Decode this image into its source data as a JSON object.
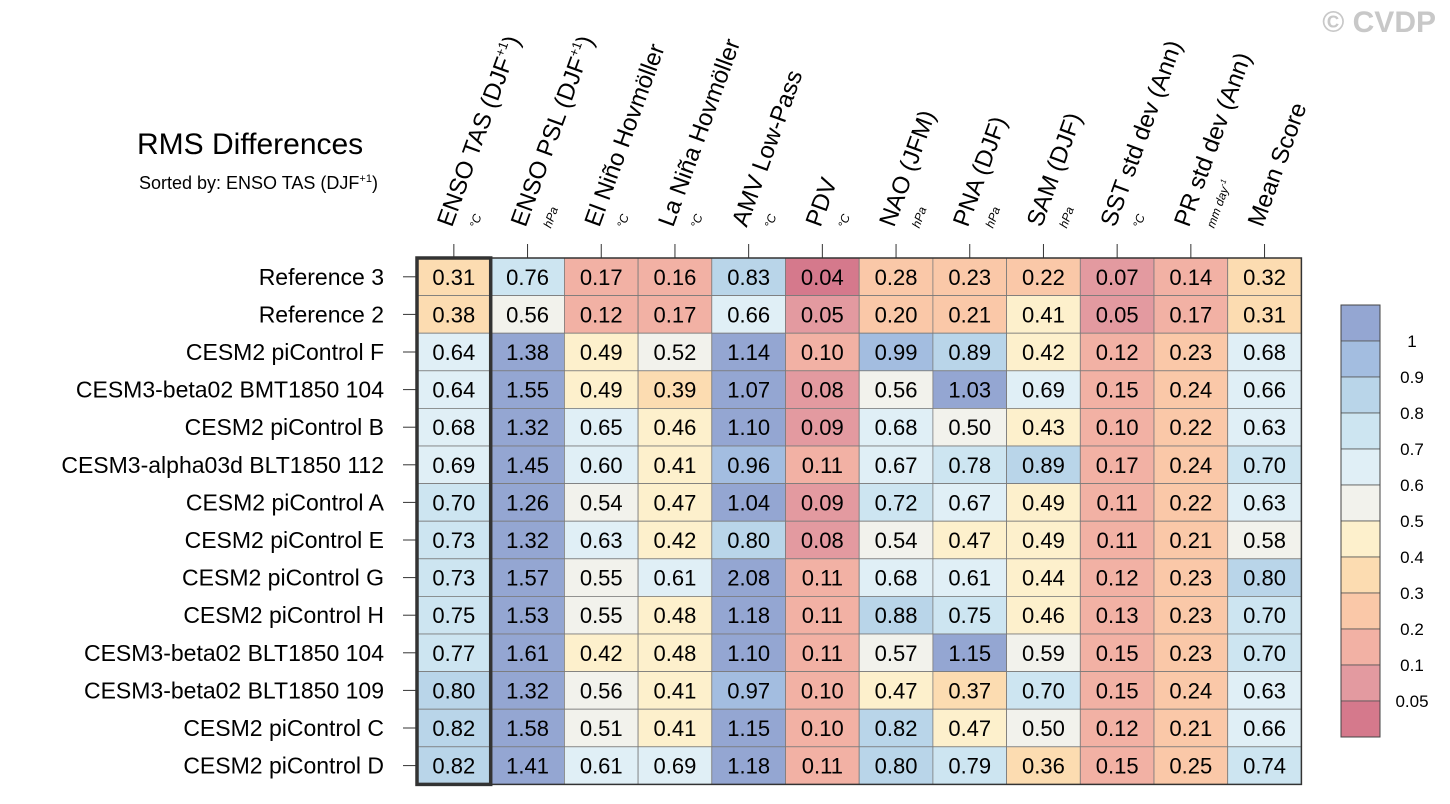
{
  "watermark": "© CVDP",
  "title": "RMS Differences",
  "subtitle": "Sorted by: ENSO TAS (DJF+1)",
  "chart_data": {
    "type": "heatmap",
    "columns": [
      {
        "main": "ENSO TAS (DJF",
        "sup": "+1",
        "close": ")",
        "unit": "°C"
      },
      {
        "main": "ENSO PSL (DJF",
        "sup": "+1",
        "close": ")",
        "unit": "hPa"
      },
      {
        "main": "El Niño Hovmöller",
        "unit": "°C"
      },
      {
        "main": "La Niña Hovmöller",
        "unit": "°C"
      },
      {
        "main": "AMV Low-Pass",
        "unit": "°C"
      },
      {
        "main": "PDV",
        "unit": "°C"
      },
      {
        "main": "NAO (JFM)",
        "unit": "hPa"
      },
      {
        "main": "PNA (DJF)",
        "unit": "hPa"
      },
      {
        "main": "SAM (DJF)",
        "unit": "hPa"
      },
      {
        "main": "SST std dev (Ann)",
        "unit": "°C"
      },
      {
        "main": "PR std dev (Ann)",
        "unit": "mm day",
        "unit_sup": "-1"
      },
      {
        "main": "Mean Score",
        "unit": ""
      }
    ],
    "rows": [
      "Reference 3",
      "Reference 2",
      "CESM2 piControl F",
      "CESM3-beta02 BMT1850 104",
      "CESM2 piControl B",
      "CESM3-alpha03d BLT1850 112",
      "CESM2 piControl A",
      "CESM2 piControl E",
      "CESM2 piControl G",
      "CESM2 piControl H",
      "CESM3-beta02 BLT1850 104",
      "CESM3-beta02 BLT1850 109",
      "CESM2 piControl C",
      "CESM2 piControl D"
    ],
    "values": [
      [
        0.31,
        0.76,
        0.17,
        0.16,
        0.83,
        0.04,
        0.28,
        0.23,
        0.22,
        0.07,
        0.14,
        0.32
      ],
      [
        0.38,
        0.56,
        0.12,
        0.17,
        0.66,
        0.05,
        0.2,
        0.21,
        0.41,
        0.05,
        0.17,
        0.31
      ],
      [
        0.64,
        1.38,
        0.49,
        0.52,
        1.14,
        0.1,
        0.99,
        0.89,
        0.42,
        0.12,
        0.23,
        0.68
      ],
      [
        0.64,
        1.55,
        0.49,
        0.39,
        1.07,
        0.08,
        0.56,
        1.03,
        0.69,
        0.15,
        0.24,
        0.66
      ],
      [
        0.68,
        1.32,
        0.65,
        0.46,
        1.1,
        0.09,
        0.68,
        0.5,
        0.43,
        0.1,
        0.22,
        0.63
      ],
      [
        0.69,
        1.45,
        0.6,
        0.41,
        0.96,
        0.11,
        0.67,
        0.78,
        0.89,
        0.17,
        0.24,
        0.7
      ],
      [
        0.7,
        1.26,
        0.54,
        0.47,
        1.04,
        0.09,
        0.72,
        0.67,
        0.49,
        0.11,
        0.22,
        0.63
      ],
      [
        0.73,
        1.32,
        0.63,
        0.42,
        0.8,
        0.08,
        0.54,
        0.47,
        0.49,
        0.11,
        0.21,
        0.58
      ],
      [
        0.73,
        1.57,
        0.55,
        0.61,
        2.08,
        0.11,
        0.68,
        0.61,
        0.44,
        0.12,
        0.23,
        0.8
      ],
      [
        0.75,
        1.53,
        0.55,
        0.48,
        1.18,
        0.11,
        0.88,
        0.75,
        0.46,
        0.13,
        0.23,
        0.7
      ],
      [
        0.77,
        1.61,
        0.42,
        0.48,
        1.1,
        0.11,
        0.57,
        1.15,
        0.59,
        0.15,
        0.23,
        0.7
      ],
      [
        0.8,
        1.32,
        0.56,
        0.41,
        0.97,
        0.1,
        0.47,
        0.37,
        0.7,
        0.15,
        0.24,
        0.63
      ],
      [
        0.82,
        1.58,
        0.51,
        0.41,
        1.15,
        0.1,
        0.82,
        0.47,
        0.5,
        0.12,
        0.21,
        0.66
      ],
      [
        0.82,
        1.41,
        0.61,
        0.69,
        1.18,
        0.11,
        0.8,
        0.79,
        0.36,
        0.15,
        0.25,
        0.74
      ]
    ],
    "sorted_column_index": 0,
    "colorbar": {
      "levels": [
        0.05,
        0.1,
        0.2,
        0.3,
        0.4,
        0.5,
        0.6,
        0.7,
        0.8,
        0.9,
        1
      ],
      "labels": [
        "0.05",
        "0.1",
        "0.2",
        "0.3",
        "0.4",
        "0.5",
        "0.6",
        "0.7",
        "0.8",
        "0.9",
        "1"
      ],
      "colors": [
        "#d5798c",
        "#e39aa0",
        "#f2b1a4",
        "#fac8a8",
        "#fcdcb1",
        "#fdf0cc",
        "#f2f2ec",
        "#e0eff6",
        "#cde5f1",
        "#b9d5e9",
        "#a3bde0",
        "#94a6d2"
      ]
    }
  }
}
